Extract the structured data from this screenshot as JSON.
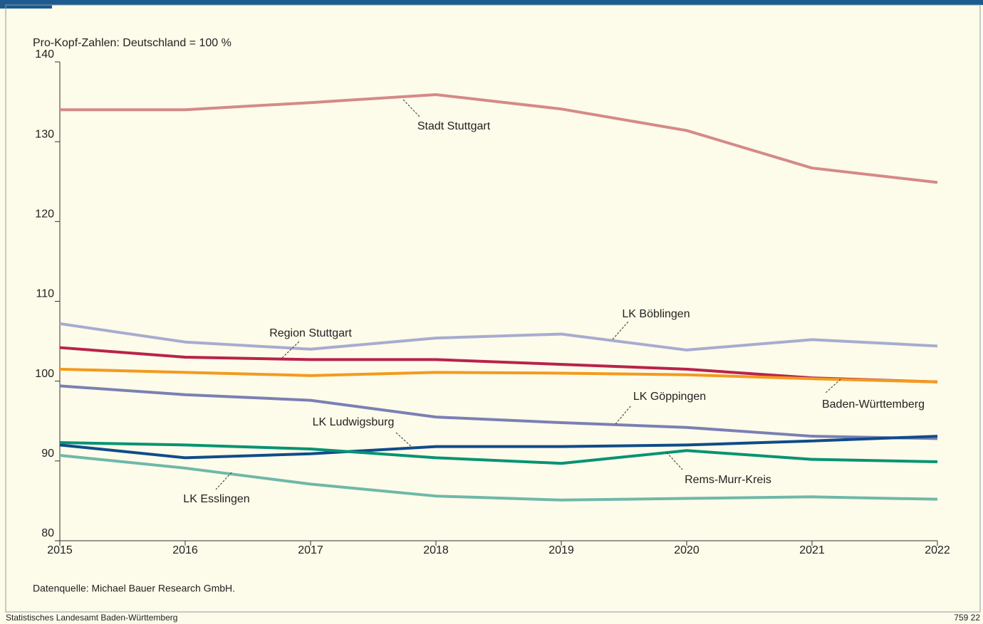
{
  "chart_data": {
    "type": "line",
    "y_label": "Pro-Kopf-Zahlen: Deutschland = 100 %",
    "source": "Datenquelle: Michael Bauer Research GmbH.",
    "footer_left": "Statistisches Landesamt Baden-Württemberg",
    "footer_right": "759 22",
    "x": [
      2015,
      2016,
      2017,
      2018,
      2019,
      2020,
      2021,
      2022
    ],
    "xlim": [
      2015,
      2022
    ],
    "xticks": [
      2015,
      2016,
      2017,
      2018,
      2019,
      2020,
      2021,
      2022
    ],
    "ylim": [
      80,
      140
    ],
    "yticks": [
      80,
      90,
      100,
      110,
      120,
      130,
      140
    ],
    "series": [
      {
        "name": "Stadt Stuttgart",
        "color": "#d48a88",
        "values": [
          134.0,
          134.0,
          134.9,
          135.9,
          134.1,
          131.4,
          126.7,
          124.9
        ]
      },
      {
        "name": "LK Böblingen",
        "color": "#a6acd0",
        "values": [
          107.2,
          104.9,
          104.0,
          105.4,
          105.9,
          103.9,
          105.2,
          104.4
        ]
      },
      {
        "name": "Region Stuttgart",
        "color": "#b8234a",
        "values": [
          104.2,
          103.0,
          102.7,
          102.7,
          102.1,
          101.5,
          100.4,
          99.9
        ]
      },
      {
        "name": "Baden-Württemberg",
        "color": "#f39a1f",
        "values": [
          101.5,
          101.1,
          100.7,
          101.1,
          101.0,
          100.8,
          100.3,
          99.9
        ]
      },
      {
        "name": "LK Göppingen",
        "color": "#7a80b4",
        "values": [
          99.4,
          98.3,
          97.6,
          95.5,
          94.8,
          94.2,
          93.1,
          92.8
        ]
      },
      {
        "name": "LK Ludwigsburg",
        "color": "#0f4c8a",
        "values": [
          92.0,
          90.4,
          90.9,
          91.8,
          91.8,
          92.0,
          92.5,
          93.1
        ]
      },
      {
        "name": "Rems-Murr-Kreis",
        "color": "#079373",
        "values": [
          92.3,
          92.0,
          91.5,
          90.4,
          89.7,
          91.3,
          90.2,
          89.9
        ]
      },
      {
        "name": "LK Esslingen",
        "color": "#6fb8a8",
        "values": [
          90.7,
          89.1,
          87.1,
          85.6,
          85.1,
          85.3,
          85.5,
          85.2
        ]
      }
    ]
  }
}
